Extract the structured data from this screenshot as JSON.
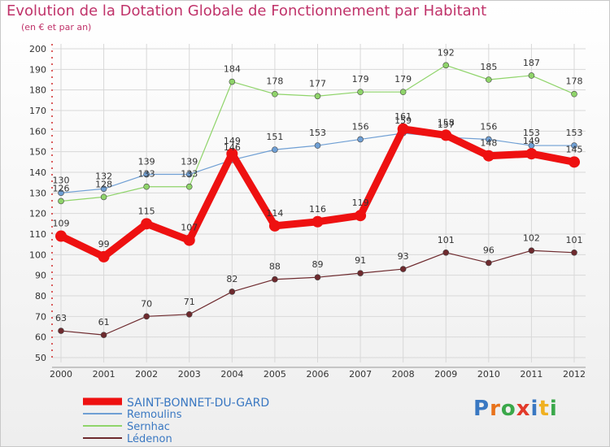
{
  "title": "Evolution de la Dotation Globale de Fonctionnement par Habitant",
  "subtitle": "(en € et par an)",
  "logo": "Proxiti",
  "chart_data": {
    "type": "line",
    "x": [
      "2000",
      "2001",
      "2002",
      "2003",
      "2004",
      "2005",
      "2006",
      "2007",
      "2008",
      "2009",
      "2010",
      "2011",
      "2012"
    ],
    "ylim": [
      50,
      200
    ],
    "yticks": [
      50,
      60,
      70,
      80,
      90,
      100,
      110,
      120,
      130,
      140,
      150,
      160,
      170,
      180,
      190,
      200
    ],
    "grid": true,
    "legend_position": "bottom-left",
    "series": [
      {
        "name": "SAINT-BONNET-DU-GARD",
        "color": "#ee1111",
        "values": [
          109,
          99,
          115,
          107,
          149,
          114,
          116,
          119,
          161,
          158,
          148,
          149,
          145
        ]
      },
      {
        "name": "Remoulins",
        "color": "#6f9fd4",
        "values": [
          130,
          132,
          139,
          139,
          146,
          151,
          153,
          156,
          159,
          157,
          156,
          153,
          153
        ]
      },
      {
        "name": "Sernhac",
        "color": "#8fd46a",
        "values": [
          126,
          128,
          133,
          133,
          184,
          178,
          177,
          179,
          179,
          192,
          185,
          187,
          178
        ]
      },
      {
        "name": "Lédenon",
        "color": "#6e2a2e",
        "values": [
          63,
          61,
          70,
          71,
          82,
          88,
          89,
          91,
          93,
          101,
          96,
          102,
          101
        ]
      }
    ]
  }
}
